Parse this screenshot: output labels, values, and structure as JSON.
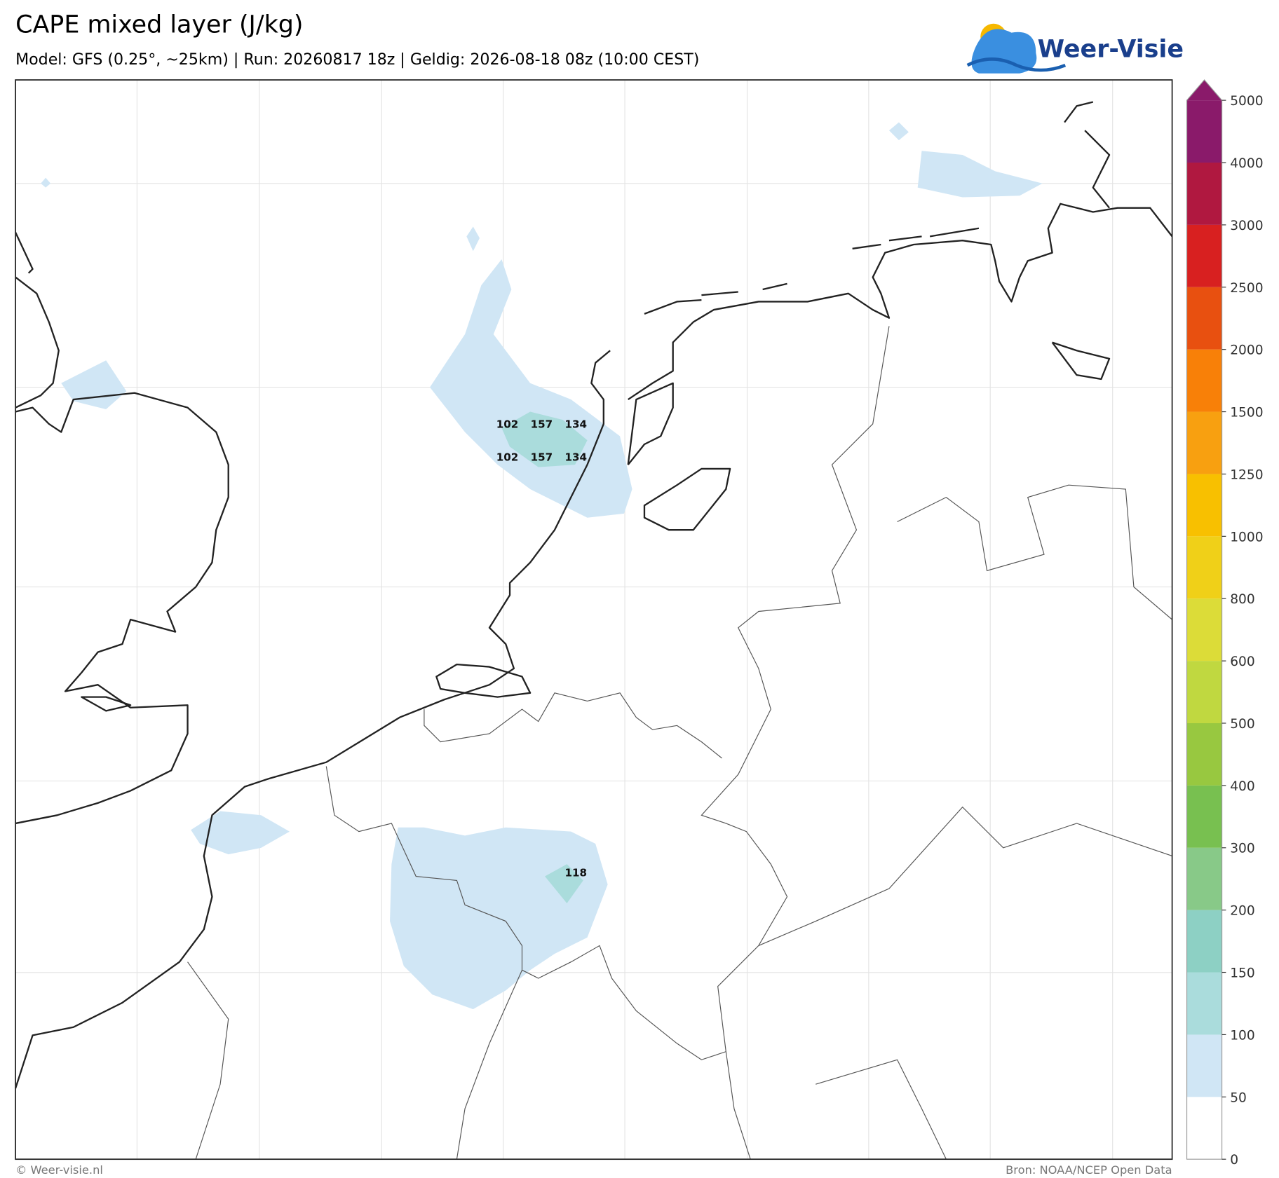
{
  "header": {
    "title": "CAPE mixed layer (J/kg)",
    "subtitle": "Model: GFS (0.25°, ~25km)  |  Run: 20260817 18z  |  Geldig: 2026-08-18 08z (10:00 CEST)",
    "logo": "Weer-Visie"
  },
  "colorbar": {
    "ticks": [
      0,
      50,
      100,
      150,
      200,
      300,
      400,
      500,
      600,
      800,
      1000,
      1250,
      1500,
      2000,
      2500,
      3000,
      4000,
      5000
    ],
    "colors": [
      "#ffffff",
      "#d0e6f5",
      "#aadcdc",
      "#8dd0c4",
      "#88c988",
      "#78c050",
      "#98c840",
      "#c0d840",
      "#dcdc38",
      "#f0d018",
      "#f8c000",
      "#f8a010",
      "#f88008",
      "#e85010",
      "#d82020",
      "#b01840",
      "#8a1a6a"
    ]
  },
  "map_labels": [
    102,
    157,
    134,
    102,
    157,
    134,
    118
  ],
  "footer": {
    "left": "© Weer-visie.nl",
    "right": "Bron: NOAA/NCEP Open Data"
  }
}
